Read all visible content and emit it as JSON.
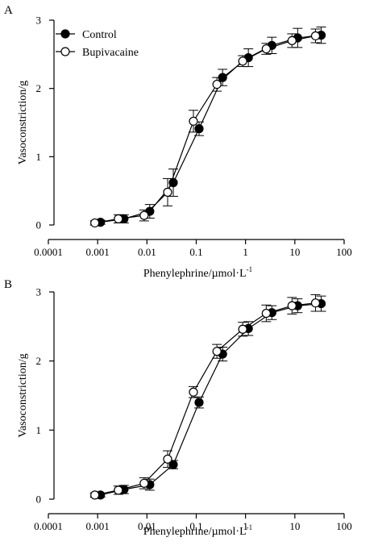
{
  "chart_data": [
    {
      "type": "line",
      "panel_label": "A",
      "xlabel": "Phenylephrine/µmol·L",
      "xlabel_superscript": "-1",
      "ylabel": "Vasoconstriction/g",
      "xscale": "log",
      "xlim": [
        0.0001,
        100
      ],
      "ylim": [
        0,
        3
      ],
      "x_ticks": [
        0.0001,
        0.001,
        0.01,
        0.1,
        1,
        10,
        100
      ],
      "x_tick_labels": [
        "0.0001",
        "0.001",
        "0.01",
        "0.1",
        "1",
        "10",
        "100"
      ],
      "y_ticks": [
        0,
        1,
        2,
        3
      ],
      "y_tick_labels": [
        "0",
        "1",
        "2",
        "3"
      ],
      "grid": false,
      "legend_position": "top-left",
      "x": [
        0.001,
        0.003,
        0.01,
        0.03,
        0.1,
        0.3,
        1,
        3,
        10,
        30
      ],
      "series": [
        {
          "name": "Control",
          "marker": "filled-circle",
          "color": "#000000",
          "values": [
            0.04,
            0.09,
            0.2,
            0.62,
            1.41,
            2.16,
            2.45,
            2.63,
            2.74,
            2.78
          ],
          "errors": [
            0.03,
            0.06,
            0.1,
            0.2,
            0.1,
            0.12,
            0.13,
            0.12,
            0.14,
            0.12
          ]
        },
        {
          "name": "Bupivacaine",
          "marker": "open-circle",
          "color": "#000000",
          "values": [
            0.03,
            0.09,
            0.14,
            0.48,
            1.52,
            2.06,
            2.4,
            2.58,
            2.7,
            2.77
          ],
          "errors": [
            0.03,
            0.06,
            0.08,
            0.2,
            0.16,
            0.1,
            0.08,
            0.08,
            0.1,
            0.1
          ]
        }
      ]
    },
    {
      "type": "line",
      "panel_label": "B",
      "xlabel": "Phenylephrine/µmol·L",
      "xlabel_superscript": "-1",
      "ylabel": "Vasoconstriction/g",
      "xscale": "log",
      "xlim": [
        0.0001,
        100
      ],
      "ylim": [
        0,
        3
      ],
      "x_ticks": [
        0.0001,
        0.001,
        0.01,
        0.1,
        1,
        10,
        100
      ],
      "x_tick_labels": [
        "0.0001",
        "0.001",
        "0.01",
        "0.1",
        "1",
        "10",
        "100"
      ],
      "y_ticks": [
        0,
        1,
        2,
        3
      ],
      "y_tick_labels": [
        "0",
        "1",
        "2",
        "3"
      ],
      "grid": false,
      "legend_position": "none",
      "x": [
        0.001,
        0.003,
        0.01,
        0.03,
        0.1,
        0.3,
        1,
        3,
        10,
        30
      ],
      "series": [
        {
          "name": "Control",
          "marker": "filled-circle",
          "color": "#000000",
          "values": [
            0.06,
            0.14,
            0.21,
            0.5,
            1.4,
            2.1,
            2.47,
            2.7,
            2.8,
            2.83
          ],
          "errors": [
            0.03,
            0.06,
            0.08,
            0.06,
            0.08,
            0.1,
            0.1,
            0.1,
            0.1,
            0.11
          ]
        },
        {
          "name": "Bupivacaine",
          "marker": "open-circle",
          "color": "#000000",
          "values": [
            0.06,
            0.13,
            0.23,
            0.58,
            1.55,
            2.14,
            2.46,
            2.69,
            2.8,
            2.84
          ],
          "errors": [
            0.03,
            0.06,
            0.08,
            0.12,
            0.08,
            0.1,
            0.1,
            0.12,
            0.12,
            0.12
          ]
        }
      ]
    }
  ]
}
